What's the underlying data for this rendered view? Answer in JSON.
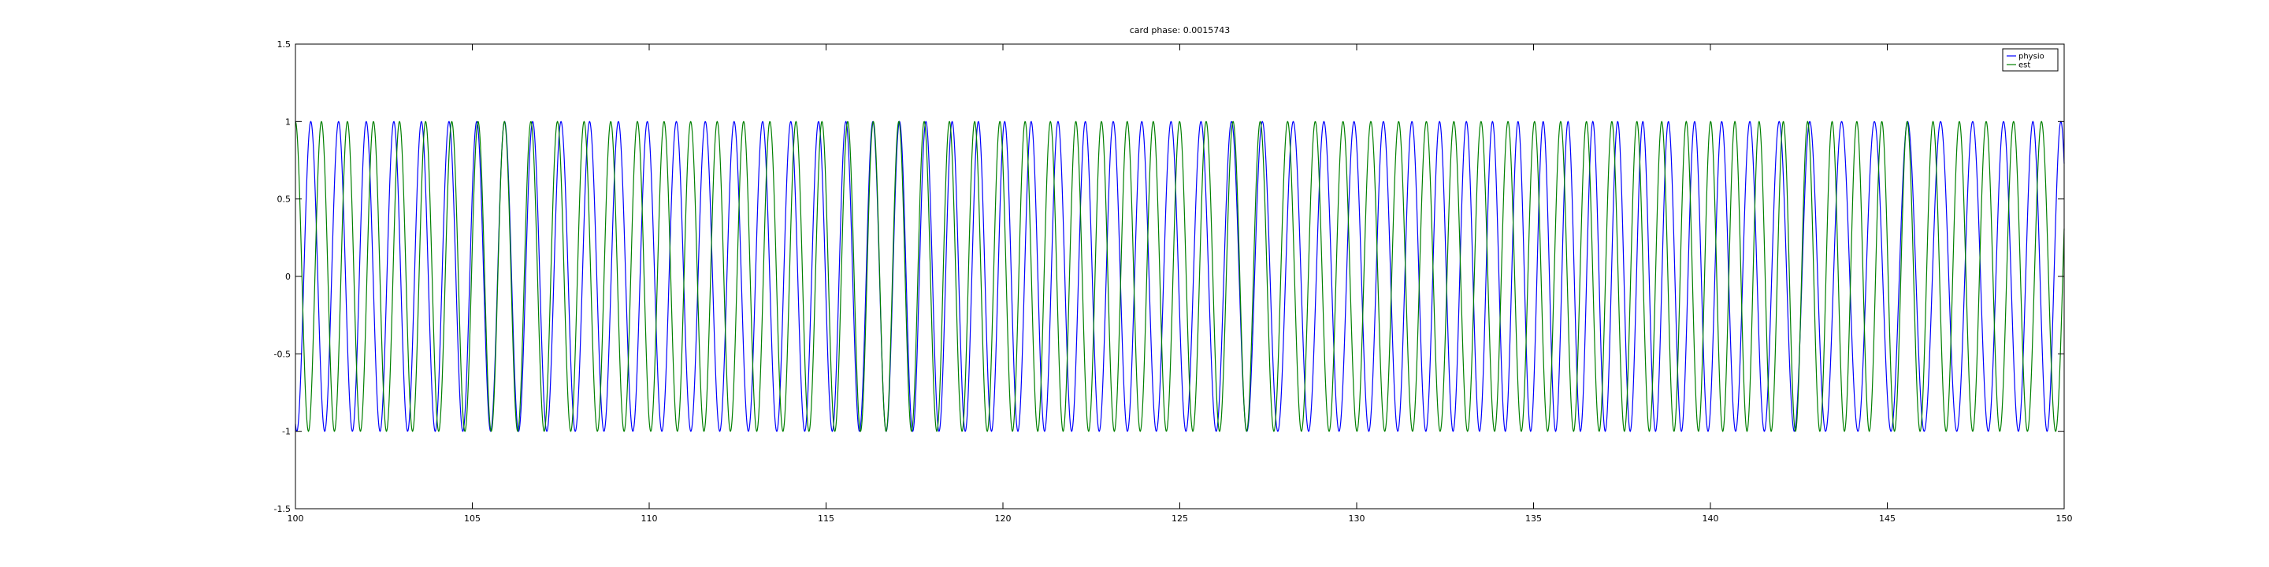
{
  "chart_data": {
    "type": "line",
    "title": "card phase: 0.0015743",
    "xlabel": "",
    "ylabel": "",
    "xlim": [
      100,
      150
    ],
    "ylim": [
      -1.5,
      1.5
    ],
    "grid": false,
    "legend_position": "top-right",
    "xticks": [
      100,
      105,
      110,
      115,
      120,
      125,
      130,
      135,
      140,
      145,
      150
    ],
    "xtick_labels": [
      "100",
      "105",
      "110",
      "115",
      "120",
      "125",
      "130",
      "135",
      "140",
      "145",
      "150"
    ],
    "yticks": [
      -1.5,
      -1,
      -0.5,
      0,
      0.5,
      1,
      1.5
    ],
    "ytick_labels": [
      "-1.5",
      "-1",
      "-0.5",
      "0",
      "0.5",
      "1",
      "1.5"
    ],
    "series": [
      {
        "name": "physio",
        "color": "#0000ff",
        "function": "cos",
        "amplitude": 1,
        "period_avg": 0.79,
        "x_start": 100,
        "x_end": 150
      },
      {
        "name": "est",
        "color": "#008000",
        "function": "cos",
        "amplitude": 1,
        "period_avg": 0.74,
        "x_start": 100,
        "x_end": 150
      }
    ]
  }
}
